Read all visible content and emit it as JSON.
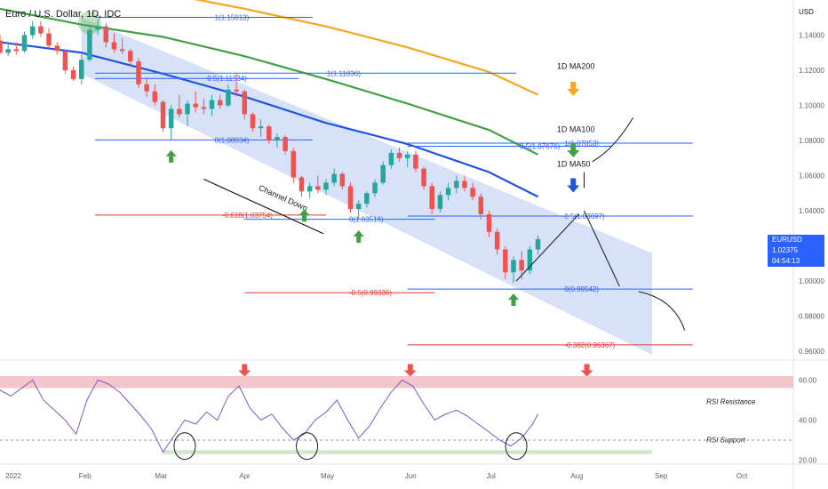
{
  "header": {
    "title": "Euro / U.S. Dollar, 1D, IDC",
    "currency": "USD"
  },
  "price_tag": {
    "symbol": "EURUSD",
    "price": "1.02375",
    "countdown": "04:54:13"
  },
  "colors": {
    "ma50": "#2155e0",
    "ma100": "#43a047",
    "ma200": "#f5a623",
    "channel": "#c9d8f7",
    "bull": "#26a69a",
    "bear": "#ef5350",
    "fib_blue": "#2962ff",
    "fib_red": "#e53935",
    "rsi": "#7e57c2",
    "rsi_resistance_band": "#f4c6cc",
    "rsi_support_band": "#cfe8c7"
  },
  "chart_data": {
    "type": "candlestick",
    "title": "Euro / U.S. Dollar, 1D, IDC",
    "price_axis": {
      "range": [
        0.955,
        1.16
      ],
      "ticks": [
        "1.14000",
        "1.12000",
        "1.10000",
        "1.08000",
        "1.06000",
        "1.04000",
        "1.02000",
        "1.00000",
        "0.98000",
        "0.96000"
      ],
      "ticks_values": [
        1.14,
        1.12,
        1.1,
        1.08,
        1.06,
        1.04,
        1.02,
        1.0,
        0.98,
        0.96
      ]
    },
    "rsi_axis": {
      "range": [
        18,
        70
      ],
      "ticks": [
        "60.00",
        "40.00",
        "20.00"
      ],
      "ticks_values": [
        60,
        40,
        20
      ]
    },
    "time_axis": {
      "labels": [
        "2022",
        "Feb",
        "Mar",
        "Apr",
        "May",
        "Jun",
        "Jul",
        "Aug",
        "Sep",
        "Oct"
      ],
      "label_days": [
        0,
        31,
        59,
        90,
        120,
        151,
        181,
        212,
        243,
        273
      ],
      "range_days": [
        0,
        292
      ]
    },
    "ohlc": [
      [
        0,
        1.137,
        1.14,
        1.129,
        1.13
      ],
      [
        3,
        1.13,
        1.136,
        1.128,
        1.132
      ],
      [
        6,
        1.132,
        1.136,
        1.129,
        1.131
      ],
      [
        9,
        1.131,
        1.142,
        1.13,
        1.14
      ],
      [
        12,
        1.14,
        1.148,
        1.138,
        1.145
      ],
      [
        15,
        1.145,
        1.148,
        1.139,
        1.141
      ],
      [
        18,
        1.141,
        1.144,
        1.133,
        1.134
      ],
      [
        21,
        1.134,
        1.136,
        1.129,
        1.131
      ],
      [
        24,
        1.131,
        1.132,
        1.118,
        1.12
      ],
      [
        27,
        1.12,
        1.122,
        1.114,
        1.115
      ],
      [
        30,
        1.115,
        1.129,
        1.112,
        1.126
      ],
      [
        33,
        1.126,
        1.145,
        1.125,
        1.143
      ],
      [
        36,
        1.143,
        1.149,
        1.14,
        1.145
      ],
      [
        39,
        1.145,
        1.147,
        1.133,
        1.136
      ],
      [
        42,
        1.136,
        1.141,
        1.13,
        1.132
      ],
      [
        45,
        1.132,
        1.138,
        1.129,
        1.131
      ],
      [
        48,
        1.131,
        1.132,
        1.123,
        1.125
      ],
      [
        51,
        1.125,
        1.127,
        1.11,
        1.112
      ],
      [
        54,
        1.112,
        1.116,
        1.105,
        1.108
      ],
      [
        57,
        1.108,
        1.112,
        1.1,
        1.102
      ],
      [
        60,
        1.102,
        1.103,
        1.085,
        1.087
      ],
      [
        63,
        1.087,
        1.1,
        1.0806,
        1.098
      ],
      [
        66,
        1.098,
        1.106,
        1.093,
        1.095
      ],
      [
        69,
        1.095,
        1.103,
        1.088,
        1.101
      ],
      [
        72,
        1.101,
        1.108,
        1.096,
        1.099
      ],
      [
        75,
        1.099,
        1.104,
        1.095,
        1.098
      ],
      [
        78,
        1.098,
        1.106,
        1.094,
        1.103
      ],
      [
        81,
        1.103,
        1.106,
        1.098,
        1.1
      ],
      [
        84,
        1.1,
        1.112,
        1.099,
        1.109
      ],
      [
        87,
        1.109,
        1.1185,
        1.105,
        1.108
      ],
      [
        90,
        1.108,
        1.109,
        1.092,
        1.095
      ],
      [
        93,
        1.095,
        1.096,
        1.085,
        1.087
      ],
      [
        96,
        1.087,
        1.092,
        1.082,
        1.088
      ],
      [
        99,
        1.088,
        1.089,
        1.078,
        1.08
      ],
      [
        102,
        1.08,
        1.084,
        1.076,
        1.082
      ],
      [
        105,
        1.082,
        1.083,
        1.072,
        1.074
      ],
      [
        108,
        1.074,
        1.076,
        1.056,
        1.059
      ],
      [
        111,
        1.059,
        1.06,
        1.048,
        1.051
      ],
      [
        114,
        1.051,
        1.056,
        1.047,
        1.054
      ],
      [
        117,
        1.054,
        1.06,
        1.05,
        1.052
      ],
      [
        120,
        1.052,
        1.058,
        1.049,
        1.056
      ],
      [
        123,
        1.056,
        1.064,
        1.054,
        1.061
      ],
      [
        126,
        1.061,
        1.062,
        1.052,
        1.054
      ],
      [
        129,
        1.054,
        1.056,
        1.039,
        1.041
      ],
      [
        132,
        1.041,
        1.046,
        1.035,
        1.044
      ],
      [
        135,
        1.044,
        1.051,
        1.042,
        1.05
      ],
      [
        138,
        1.05,
        1.058,
        1.048,
        1.056
      ],
      [
        141,
        1.056,
        1.068,
        1.055,
        1.066
      ],
      [
        144,
        1.066,
        1.075,
        1.064,
        1.073
      ],
      [
        147,
        1.073,
        1.076,
        1.068,
        1.07
      ],
      [
        150,
        1.07,
        1.074,
        1.065,
        1.072
      ],
      [
        153,
        1.072,
        1.074,
        1.062,
        1.064
      ],
      [
        156,
        1.064,
        1.065,
        1.052,
        1.054
      ],
      [
        159,
        1.054,
        1.056,
        1.038,
        1.041
      ],
      [
        162,
        1.041,
        1.051,
        1.039,
        1.049
      ],
      [
        165,
        1.049,
        1.056,
        1.046,
        1.053
      ],
      [
        168,
        1.053,
        1.06,
        1.05,
        1.057
      ],
      [
        171,
        1.057,
        1.06,
        1.051,
        1.053
      ],
      [
        174,
        1.053,
        1.056,
        1.046,
        1.048
      ],
      [
        177,
        1.048,
        1.05,
        1.035,
        1.038
      ],
      [
        180,
        1.038,
        1.04,
        1.025,
        1.028
      ],
      [
        183,
        1.028,
        1.03,
        1.015,
        1.018
      ],
      [
        186,
        1.018,
        1.02,
        1.001,
        1.005
      ],
      [
        189,
        1.005,
        1.014,
        0.999,
        1.012
      ],
      [
        192,
        1.012,
        1.017,
        1.001,
        1.006
      ],
      [
        195,
        1.006,
        1.02,
        1.004,
        1.018
      ],
      [
        198,
        1.018,
        1.026,
        1.015,
        1.0238
      ]
    ],
    "moving_averages": [
      {
        "name": "1D MA50",
        "color": "#2155e0",
        "points": [
          [
            0,
            1.136
          ],
          [
            30,
            1.13
          ],
          [
            60,
            1.118
          ],
          [
            90,
            1.105
          ],
          [
            120,
            1.09
          ],
          [
            150,
            1.078
          ],
          [
            180,
            1.062
          ],
          [
            198,
            1.048
          ]
        ]
      },
      {
        "name": "1D MA100",
        "color": "#43a047",
        "points": [
          [
            0,
            1.155
          ],
          [
            30,
            1.146
          ],
          [
            60,
            1.139
          ],
          [
            90,
            1.128
          ],
          [
            120,
            1.115
          ],
          [
            150,
            1.101
          ],
          [
            180,
            1.086
          ],
          [
            198,
            1.072
          ]
        ]
      },
      {
        "name": "1D MA200",
        "color": "#f5a623",
        "points": [
          [
            0,
            1.183
          ],
          [
            30,
            1.172
          ],
          [
            60,
            1.164
          ],
          [
            90,
            1.155
          ],
          [
            120,
            1.145
          ],
          [
            150,
            1.133
          ],
          [
            180,
            1.119
          ],
          [
            198,
            1.106
          ]
        ]
      }
    ],
    "channel": {
      "name": "Channel Down",
      "upper": [
        [
          30,
          1.15
        ],
        [
          240,
          1.016
        ]
      ],
      "lower": [
        [
          30,
          1.118
        ],
        [
          240,
          0.958
        ]
      ]
    },
    "fib_levels": [
      {
        "label": "1(1.15013)",
        "value": 1.15013,
        "from_day": 35,
        "to_day": 115,
        "color": "#2962ff"
      },
      {
        "label": "1(1.11836)",
        "value": 1.11836,
        "from_day": 35,
        "to_day": 190,
        "color": "#2962ff"
      },
      {
        "label": "0.5(1.11534)",
        "value": 1.11534,
        "from_day": 35,
        "to_day": 110,
        "color": "#2962ff"
      },
      {
        "label": "0(1.08034)",
        "value": 1.08034,
        "from_day": 35,
        "to_day": 115,
        "color": "#2962ff"
      },
      {
        "label": "-0.618(1.03754)",
        "value": 1.03754,
        "from_day": 35,
        "to_day": 120,
        "color": "#e53935"
      },
      {
        "label": "0.5(1.07676)",
        "value": 1.07676,
        "from_day": 150,
        "to_day": 225,
        "color": "#2962ff"
      },
      {
        "label": "1(1.07853)",
        "value": 1.07853,
        "from_day": 150,
        "to_day": 255,
        "color": "#2962ff"
      },
      {
        "label": "0(1.03516)",
        "value": 1.03516,
        "from_day": 90,
        "to_day": 160,
        "color": "#2962ff"
      },
      {
        "label": "0.5(1.03697)",
        "value": 1.03697,
        "from_day": 150,
        "to_day": 255,
        "color": "#2962ff"
      },
      {
        "label": "-0.5(0.99336)",
        "value": 0.99336,
        "from_day": 90,
        "to_day": 160,
        "color": "#e53935"
      },
      {
        "label": "0(0.99542)",
        "value": 0.99542,
        "from_day": 150,
        "to_day": 255,
        "color": "#2962ff"
      },
      {
        "label": "-0.382(0.96367)",
        "value": 0.96367,
        "from_day": 150,
        "to_day": 255,
        "color": "#e53935"
      }
    ],
    "annotations": [
      {
        "text": "1D MA200",
        "day": 205,
        "value": 1.1208
      },
      {
        "text": "1D MA100",
        "day": 205,
        "value": 1.0848
      },
      {
        "text": "1D MA50",
        "day": 205,
        "value": 1.065
      },
      {
        "text": "Channel Down",
        "day": 95,
        "value": 1.052
      },
      {
        "text": "RSI Resistance",
        "day": 260,
        "rsi": 48
      },
      {
        "text": "RSI Support",
        "day": 260,
        "rsi": 29
      }
    ],
    "rsi": {
      "values": [
        [
          0,
          55
        ],
        [
          4,
          52
        ],
        [
          8,
          56
        ],
        [
          12,
          60
        ],
        [
          16,
          50
        ],
        [
          20,
          45
        ],
        [
          24,
          40
        ],
        [
          28,
          33
        ],
        [
          32,
          50
        ],
        [
          36,
          60
        ],
        [
          40,
          58
        ],
        [
          44,
          54
        ],
        [
          48,
          48
        ],
        [
          52,
          42
        ],
        [
          56,
          35
        ],
        [
          60,
          24
        ],
        [
          64,
          32
        ],
        [
          68,
          40
        ],
        [
          72,
          38
        ],
        [
          76,
          44
        ],
        [
          80,
          40
        ],
        [
          84,
          52
        ],
        [
          88,
          57
        ],
        [
          92,
          46
        ],
        [
          96,
          40
        ],
        [
          100,
          43
        ],
        [
          104,
          36
        ],
        [
          108,
          30
        ],
        [
          112,
          33
        ],
        [
          116,
          40
        ],
        [
          120,
          44
        ],
        [
          124,
          50
        ],
        [
          128,
          40
        ],
        [
          132,
          31
        ],
        [
          136,
          37
        ],
        [
          140,
          46
        ],
        [
          144,
          54
        ],
        [
          148,
          60
        ],
        [
          152,
          57
        ],
        [
          156,
          48
        ],
        [
          160,
          40
        ],
        [
          164,
          43
        ],
        [
          168,
          45
        ],
        [
          172,
          42
        ],
        [
          176,
          38
        ],
        [
          180,
          34
        ],
        [
          184,
          30
        ],
        [
          188,
          27
        ],
        [
          192,
          31
        ],
        [
          196,
          38
        ],
        [
          198,
          43
        ]
      ],
      "resistance_band": [
        56,
        62
      ],
      "support_band": [
        23,
        25
      ],
      "dashed_level": 30
    }
  }
}
